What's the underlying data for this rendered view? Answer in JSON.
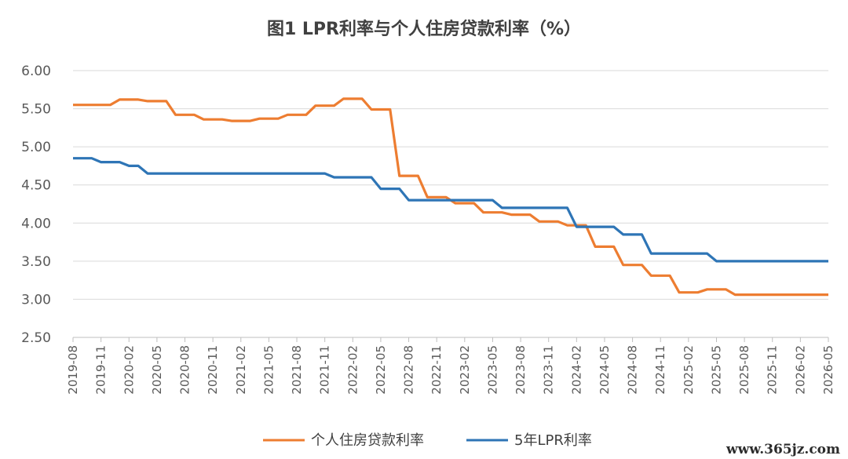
{
  "chart_data": {
    "type": "line",
    "title": "图1  LPR利率与个人住房贷款利率（%）",
    "yticks": [
      "6.00",
      "5.50",
      "5.00",
      "4.50",
      "4.00",
      "3.50",
      "3.00",
      "2.50"
    ],
    "ylim": [
      2.5,
      6.0
    ],
    "grid": true,
    "legend_position": "bottom",
    "x_tick_labels": [
      "2019-08",
      "2019-11",
      "2020-02",
      "2020-05",
      "2020-08",
      "2020-11",
      "2021-02",
      "2021-05",
      "2021-08",
      "2021-11",
      "2022-02",
      "2022-05",
      "2022-08",
      "2022-11",
      "2023-02",
      "2023-05",
      "2023-08",
      "2023-11",
      "2024-02",
      "2024-05",
      "2024-08",
      "2024-11",
      "2025-02",
      "2025-05",
      "2025-08",
      "2025-11",
      "2026-02",
      "2026-05"
    ],
    "series": [
      {
        "name": "个人住房贷款利率",
        "color": "#ED7D31",
        "points": [
          [
            "2019-08",
            5.55
          ],
          [
            "2019-12",
            5.55
          ],
          [
            "2020-01",
            5.62
          ],
          [
            "2020-03",
            5.62
          ],
          [
            "2020-04",
            5.6
          ],
          [
            "2020-06",
            5.6
          ],
          [
            "2020-07",
            5.42
          ],
          [
            "2020-09",
            5.42
          ],
          [
            "2020-10",
            5.36
          ],
          [
            "2020-12",
            5.36
          ],
          [
            "2021-01",
            5.34
          ],
          [
            "2021-03",
            5.34
          ],
          [
            "2021-04",
            5.37
          ],
          [
            "2021-06",
            5.37
          ],
          [
            "2021-07",
            5.42
          ],
          [
            "2021-09",
            5.42
          ],
          [
            "2021-10",
            5.54
          ],
          [
            "2021-12",
            5.54
          ],
          [
            "2022-01",
            5.63
          ],
          [
            "2022-03",
            5.63
          ],
          [
            "2022-04",
            5.49
          ],
          [
            "2022-06",
            5.49
          ],
          [
            "2022-07",
            4.62
          ],
          [
            "2022-09",
            4.62
          ],
          [
            "2022-10",
            4.34
          ],
          [
            "2022-12",
            4.34
          ],
          [
            "2023-01",
            4.26
          ],
          [
            "2023-03",
            4.26
          ],
          [
            "2023-04",
            4.14
          ],
          [
            "2023-06",
            4.14
          ],
          [
            "2023-07",
            4.11
          ],
          [
            "2023-09",
            4.11
          ],
          [
            "2023-10",
            4.02
          ],
          [
            "2023-12",
            4.02
          ],
          [
            "2024-01",
            3.97
          ],
          [
            "2024-03",
            3.97
          ],
          [
            "2024-04",
            3.69
          ],
          [
            "2024-06",
            3.69
          ],
          [
            "2024-07",
            3.45
          ],
          [
            "2024-09",
            3.45
          ],
          [
            "2024-10",
            3.31
          ],
          [
            "2024-12",
            3.31
          ],
          [
            "2025-01",
            3.09
          ],
          [
            "2025-03",
            3.09
          ],
          [
            "2025-04",
            3.13
          ],
          [
            "2025-06",
            3.13
          ],
          [
            "2025-07",
            3.06
          ],
          [
            "2026-05",
            3.06
          ]
        ]
      },
      {
        "name": "5年LPR利率",
        "color": "#2E75B6",
        "points": [
          [
            "2019-08",
            4.85
          ],
          [
            "2019-10",
            4.85
          ],
          [
            "2019-11",
            4.8
          ],
          [
            "2020-01",
            4.8
          ],
          [
            "2020-02",
            4.75
          ],
          [
            "2020-03",
            4.75
          ],
          [
            "2020-04",
            4.65
          ],
          [
            "2021-11",
            4.65
          ],
          [
            "2021-12",
            4.6
          ],
          [
            "2022-04",
            4.6
          ],
          [
            "2022-05",
            4.45
          ],
          [
            "2022-07",
            4.45
          ],
          [
            "2022-08",
            4.3
          ],
          [
            "2023-05",
            4.3
          ],
          [
            "2023-06",
            4.2
          ],
          [
            "2024-01",
            4.2
          ],
          [
            "2024-02",
            3.95
          ],
          [
            "2024-06",
            3.95
          ],
          [
            "2024-07",
            3.85
          ],
          [
            "2024-09",
            3.85
          ],
          [
            "2024-10",
            3.6
          ],
          [
            "2025-04",
            3.6
          ],
          [
            "2025-05",
            3.5
          ],
          [
            "2026-05",
            3.5
          ]
        ]
      }
    ]
  },
  "watermark": "www.365jz.com"
}
